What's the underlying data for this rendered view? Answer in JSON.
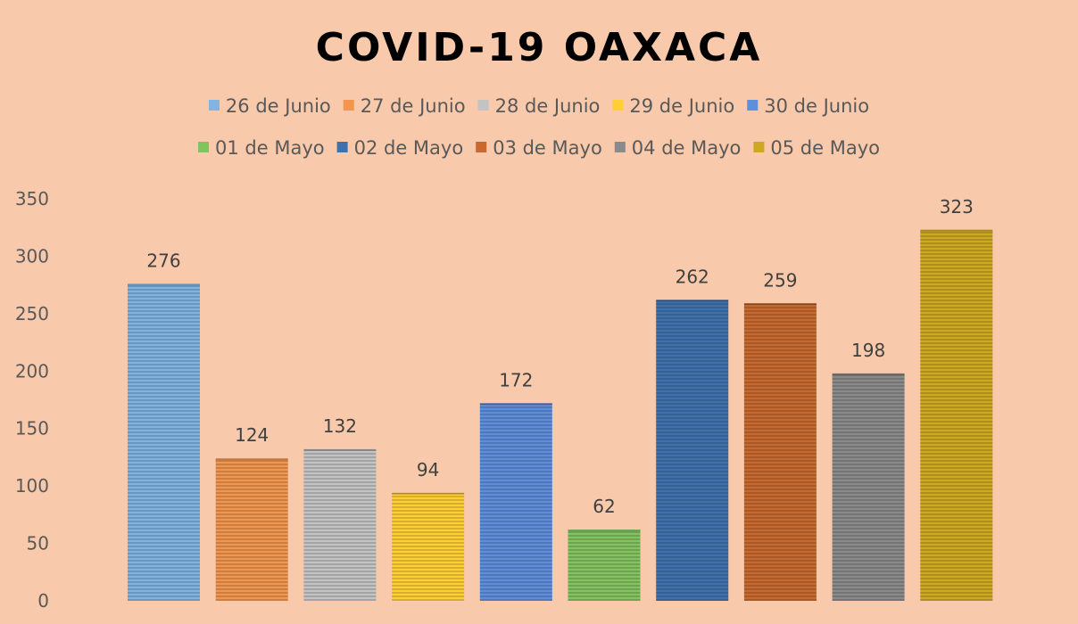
{
  "chart_data": {
    "type": "bar",
    "title": "COVID-19 OAXACA",
    "xlabel": "",
    "ylabel": "",
    "ylim": [
      0,
      350
    ],
    "yticks": [
      0,
      50,
      100,
      150,
      200,
      250,
      300,
      350
    ],
    "grid": false,
    "legend_position": "top",
    "series": [
      {
        "name": "26 de Junio",
        "value": 276,
        "color": "#7fb4e3"
      },
      {
        "name": "27 de Junio",
        "value": 124,
        "color": "#f2954f"
      },
      {
        "name": "28 de Junio",
        "value": 132,
        "color": "#c3c3c3"
      },
      {
        "name": "29 de Junio",
        "value": 94,
        "color": "#ffcf33"
      },
      {
        "name": "30 de Junio",
        "value": 172,
        "color": "#5f8edb"
      },
      {
        "name": "01 de Mayo",
        "value": 62,
        "color": "#83c35f"
      },
      {
        "name": "02 de Mayo",
        "value": 262,
        "color": "#3f72ad"
      },
      {
        "name": "03 de Mayo",
        "value": 259,
        "color": "#c86a2e"
      },
      {
        "name": "04 de Mayo",
        "value": 198,
        "color": "#8a8a8a"
      },
      {
        "name": "05 de Mayo",
        "value": 323,
        "color": "#cfa823"
      }
    ]
  }
}
